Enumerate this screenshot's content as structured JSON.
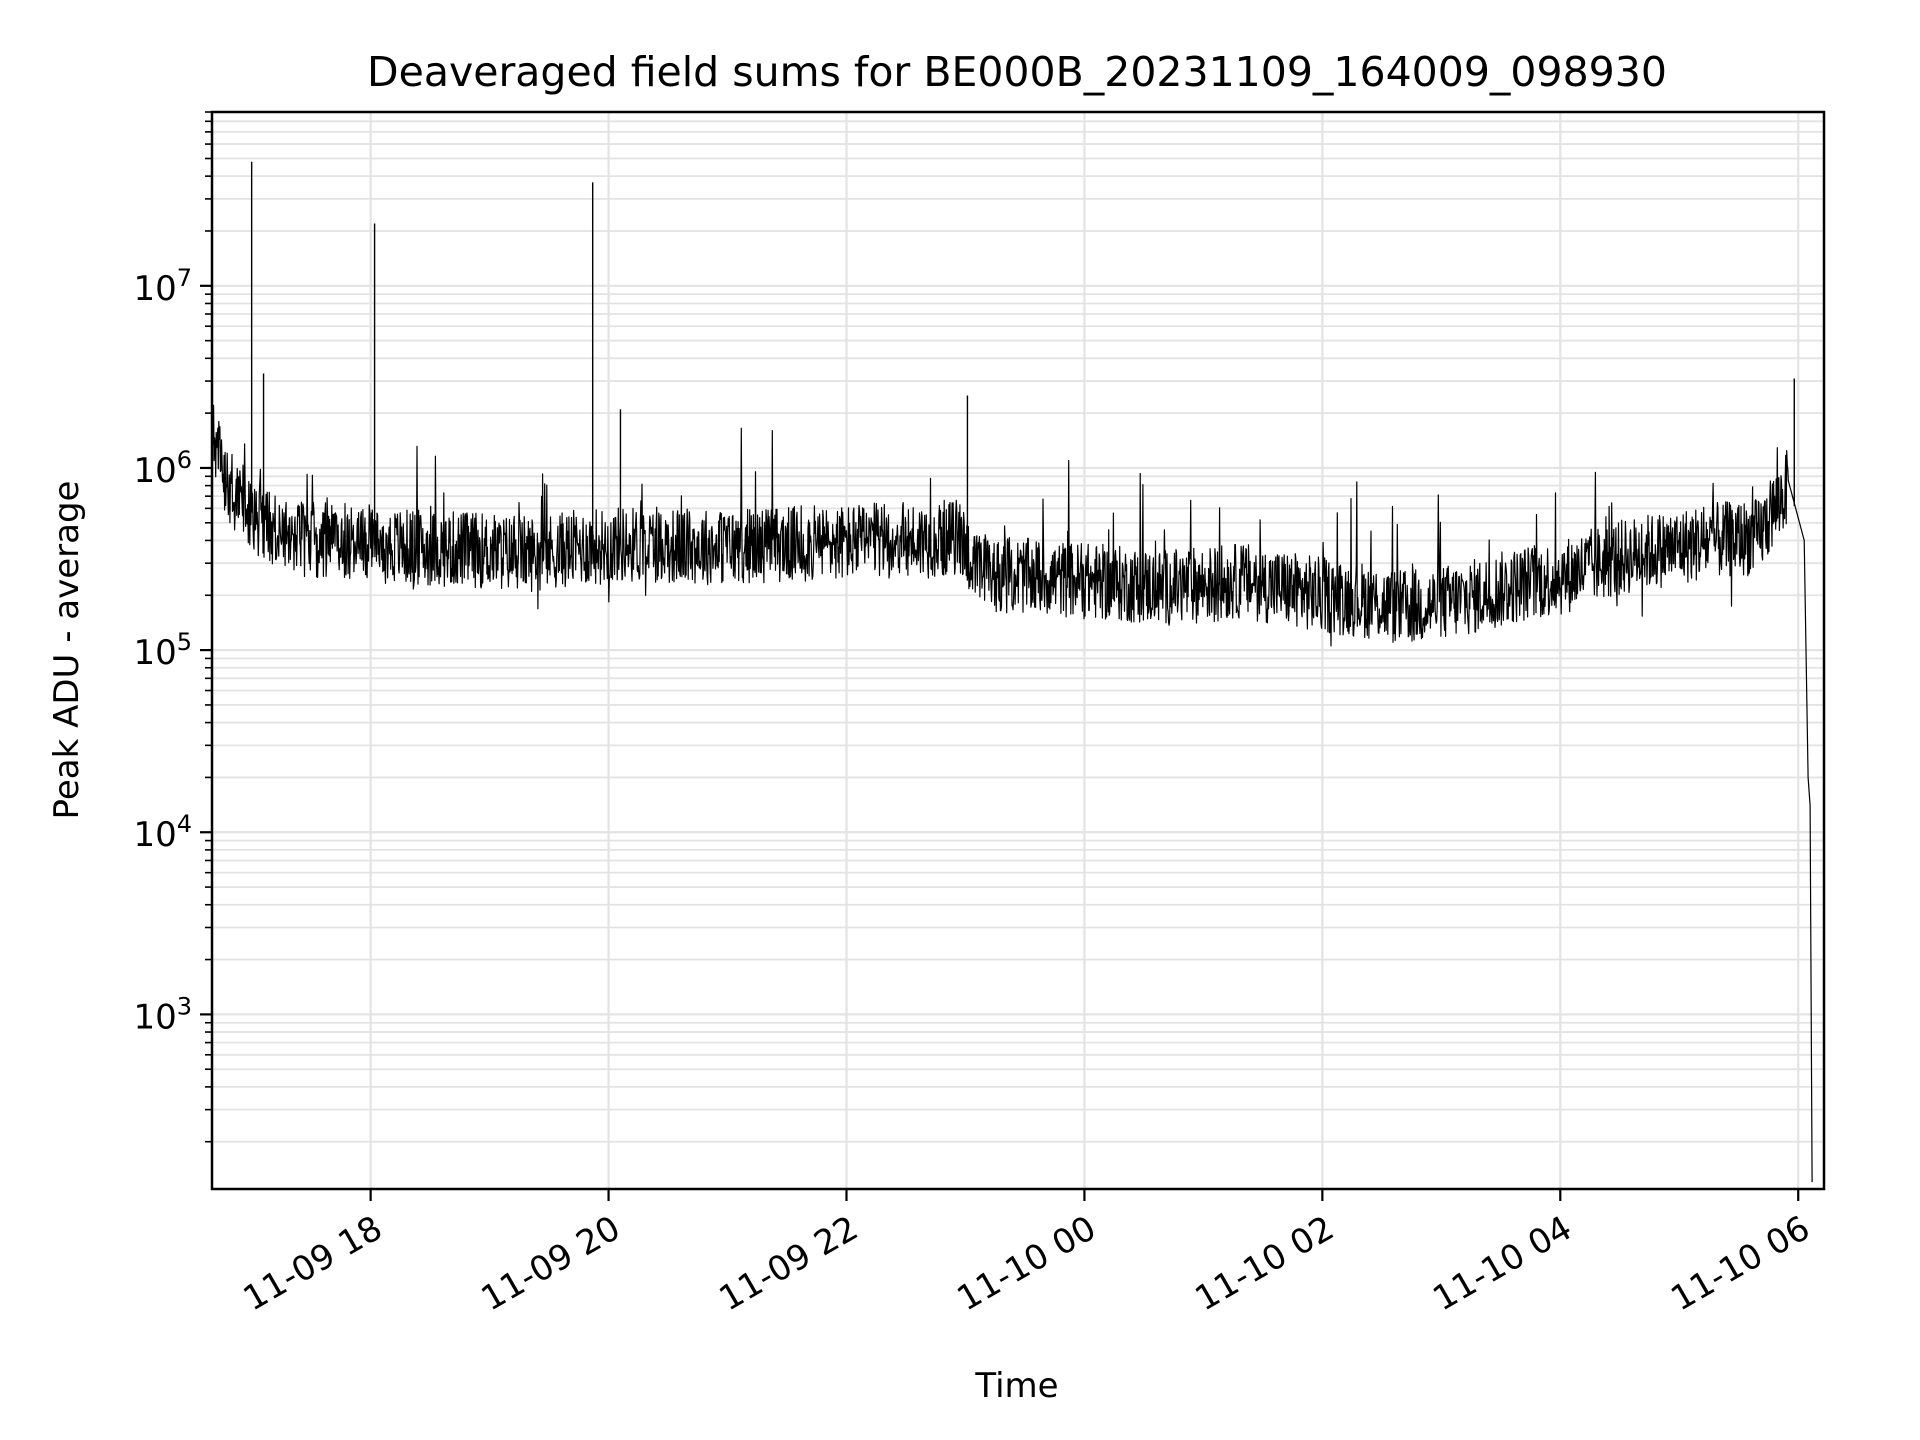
{
  "chart_data": {
    "type": "line",
    "title": "Deaveraged field sums for BE000B_20231109_164009_098930",
    "xlabel": "Time",
    "ylabel": "Peak ADU - average",
    "y_scale": "log",
    "ylim": [
      110,
      90000000
    ],
    "xlim": [
      "2023-11-09 16:40",
      "2023-11-10 06:13"
    ],
    "grid": true,
    "legend": "none",
    "line_color": "#000000",
    "x_ticks": [
      {
        "label": "11-09 18",
        "value": "2023-11-09 18:00"
      },
      {
        "label": "11-09 20",
        "value": "2023-11-09 20:00"
      },
      {
        "label": "11-09 22",
        "value": "2023-11-09 22:00"
      },
      {
        "label": "11-10 00",
        "value": "2023-11-10 00:00"
      },
      {
        "label": "11-10 02",
        "value": "2023-11-10 02:00"
      },
      {
        "label": "11-10 04",
        "value": "2023-11-10 04:00"
      },
      {
        "label": "11-10 06",
        "value": "2023-11-10 06:00"
      }
    ],
    "y_ticks": [
      {
        "base": "10",
        "exp": "3",
        "value": 1000
      },
      {
        "base": "10",
        "exp": "4",
        "value": 10000
      },
      {
        "base": "10",
        "exp": "5",
        "value": 100000
      },
      {
        "base": "10",
        "exp": "6",
        "value": 1000000
      },
      {
        "base": "10",
        "exp": "7",
        "value": 10000000
      }
    ],
    "series": [
      {
        "x": [
          "2023-11-09 16:40",
          "2023-11-09 16:48",
          "2023-11-09 16:58",
          "2023-11-09 17:05",
          "2023-11-09 17:12",
          "2023-11-09 17:20",
          "2023-11-09 17:35",
          "2023-11-09 17:50",
          "2023-11-09 18:02",
          "2023-11-09 18:15",
          "2023-11-09 18:30",
          "2023-11-09 18:45",
          "2023-11-09 19:00",
          "2023-11-09 19:12",
          "2023-11-09 19:25",
          "2023-11-09 19:40",
          "2023-11-09 19:52",
          "2023-11-09 20:05",
          "2023-11-09 20:20",
          "2023-11-09 20:40",
          "2023-11-09 21:00",
          "2023-11-09 21:20",
          "2023-11-09 21:40",
          "2023-11-09 22:00",
          "2023-11-09 22:20",
          "2023-11-09 22:40",
          "2023-11-09 22:58",
          "2023-11-09 23:05",
          "2023-11-09 23:20",
          "2023-11-09 23:40",
          "2023-11-10 00:00",
          "2023-11-10 00:20",
          "2023-11-10 00:40",
          "2023-11-10 01:00",
          "2023-11-10 01:20",
          "2023-11-10 01:40",
          "2023-11-10 02:00",
          "2023-11-10 02:20",
          "2023-11-10 02:40",
          "2023-11-10 03:00",
          "2023-11-10 03:20",
          "2023-11-10 03:40",
          "2023-11-10 04:00",
          "2023-11-10 04:20",
          "2023-11-10 04:40",
          "2023-11-10 05:00",
          "2023-11-10 05:20",
          "2023-11-10 05:40",
          "2023-11-10 05:55",
          "2023-11-10 06:03",
          "2023-11-10 06:05",
          "2023-11-10 06:06",
          "2023-11-10 06:07"
        ],
        "y": [
          1500000,
          800000,
          600000,
          500000,
          450000,
          420000,
          400000,
          400000,
          380000,
          370000,
          360000,
          360000,
          350000,
          340000,
          340000,
          360000,
          370000,
          380000,
          380000,
          370000,
          370000,
          380000,
          380000,
          390000,
          400000,
          400000,
          420000,
          270000,
          260000,
          250000,
          240000,
          230000,
          220000,
          230000,
          240000,
          220000,
          200000,
          190000,
          170000,
          180000,
          200000,
          230000,
          250000,
          300000,
          340000,
          370000,
          400000,
          420000,
          800000,
          400000,
          20000,
          14000,
          120
        ],
        "spikes": [
          {
            "x": "2023-11-09 17:00",
            "y": 48000000
          },
          {
            "x": "2023-11-09 18:02",
            "y": 22000000
          },
          {
            "x": "2023-11-09 19:52",
            "y": 37000000
          },
          {
            "x": "2023-11-09 20:06",
            "y": 2100000
          },
          {
            "x": "2023-11-09 23:01",
            "y": 2500000
          },
          {
            "x": "2023-11-09 17:06",
            "y": 3300000
          },
          {
            "x": "2023-11-10 05:58",
            "y": 3100000
          }
        ]
      }
    ]
  }
}
